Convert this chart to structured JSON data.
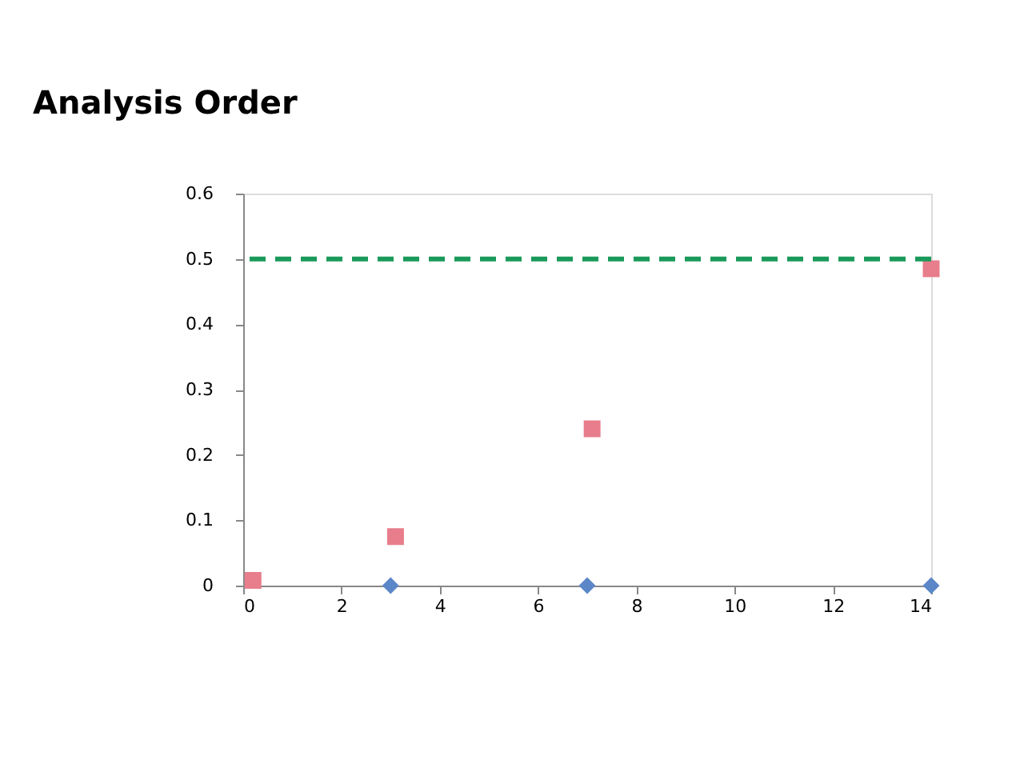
{
  "chart_data": {
    "type": "scatter",
    "title": "Analysis Order",
    "xlim": [
      0,
      14
    ],
    "xticks": [
      0,
      2,
      4,
      6,
      8,
      10,
      12,
      14
    ],
    "ylim": [
      0,
      0.6
    ],
    "yticks": [
      0,
      0.1,
      0.2,
      0.3,
      0.4,
      0.5,
      0.6
    ],
    "grid": false,
    "series": [
      {
        "color": "#e87d8c",
        "marker": "square",
        "x": [
          0.2,
          3.1,
          7.1,
          14
        ],
        "values": [
          0.008,
          0.075,
          0.24,
          0.485
        ]
      },
      {
        "color": "#5b87c8",
        "marker": "diamond",
        "x": [
          3,
          7,
          14
        ],
        "values": [
          0,
          0,
          0
        ]
      }
    ],
    "ref_lines": [
      {
        "axis": "y",
        "value": 0.5,
        "color": "#1a9a5a",
        "line_style": "dashed"
      }
    ]
  }
}
